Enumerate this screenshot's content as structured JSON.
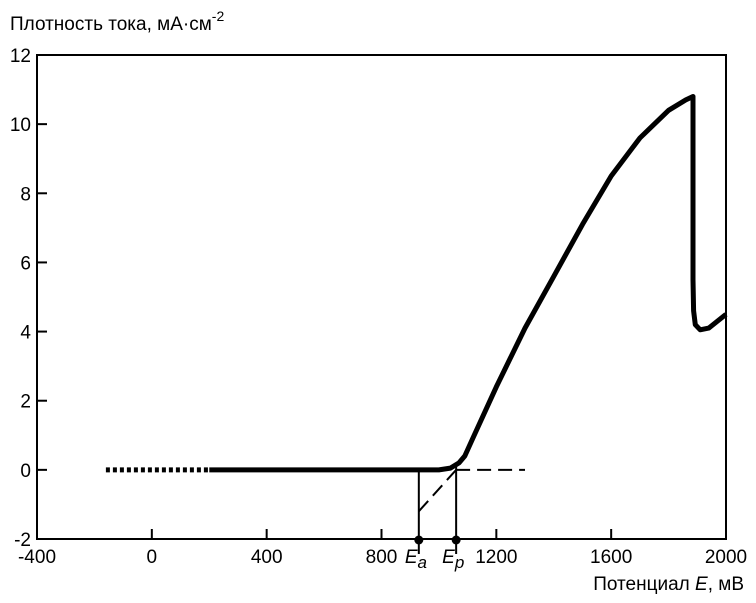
{
  "chart_data": {
    "type": "line",
    "ylabel": "Плотность тока, мА·см",
    "ylabel_sup": "-2",
    "xlabel_prefix": "Потенциал ",
    "xlabel_var": "E",
    "xlabel_suffix": ", мВ",
    "xlim": [
      -400,
      2000
    ],
    "ylim": [
      -2,
      12
    ],
    "xticks": [
      "-400",
      "0",
      "400",
      "800",
      "1200",
      "1600",
      "2000"
    ],
    "xtick_values": [
      -400,
      0,
      400,
      800,
      1200,
      1600,
      2000
    ],
    "yticks": [
      "-2",
      "0",
      "2",
      "4",
      "6",
      "8",
      "10",
      "12"
    ],
    "ytick_values": [
      -2,
      0,
      2,
      4,
      6,
      8,
      10,
      12
    ],
    "markers": [
      {
        "var": "E",
        "sub": "a",
        "x": 930
      },
      {
        "var": "E",
        "sub": "p",
        "x": 1060
      }
    ],
    "series": [
      {
        "style": "dotted",
        "x": [
          -160,
          200
        ],
        "y": [
          0,
          0
        ]
      },
      {
        "style": "solid",
        "x": [
          200,
          1000,
          1040,
          1070,
          1090,
          1120,
          1200,
          1300,
          1400,
          1500,
          1600,
          1700,
          1800,
          1860,
          1885,
          1885,
          1887,
          1893,
          1910,
          1940,
          1970,
          2000
        ],
        "y": [
          0,
          0,
          0.05,
          0.2,
          0.4,
          0.95,
          2.4,
          4.1,
          5.6,
          7.1,
          8.5,
          9.6,
          10.4,
          10.7,
          10.8,
          5.5,
          4.6,
          4.2,
          4.05,
          4.1,
          4.3,
          4.5
        ]
      },
      {
        "style": "dashed",
        "x": [
          930,
          1060
        ],
        "y": [
          -1.2,
          0
        ]
      },
      {
        "style": "dashed",
        "x": [
          1060,
          1300
        ],
        "y": [
          0,
          0
        ]
      }
    ]
  }
}
